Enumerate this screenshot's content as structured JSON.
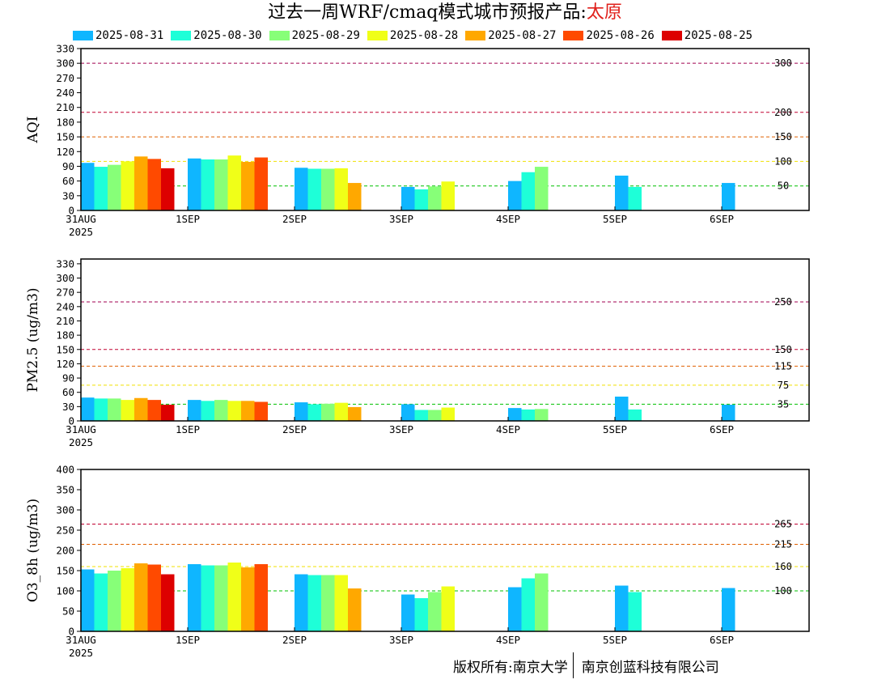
{
  "header": {
    "title_prefix": "过去一周WRF/cmaq模式城市预报产品:",
    "city": "太原"
  },
  "colors": {
    "series": [
      "#0fb6ff",
      "#1effd8",
      "#87ff78",
      "#f0ff18",
      "#ffa800",
      "#ff4a00",
      "#dd0000"
    ],
    "thresholds": {
      "300": "#a00050",
      "200": "#c00030",
      "150": "#e06000",
      "100": "#f0e000",
      "50": "#00c000"
    }
  },
  "legend": [
    "2025-08-31",
    "2025-08-30",
    "2025-08-29",
    "2025-08-28",
    "2025-08-27",
    "2025-08-26",
    "2025-08-25"
  ],
  "footer": {
    "copyright_left": "版权所有:南京大学",
    "copyright_right": "南京创蓝科技有限公司"
  },
  "chart_data": [
    {
      "type": "bar",
      "ylabel": "AQI",
      "ylim": [
        0,
        330
      ],
      "yticks": [
        0,
        30,
        60,
        90,
        120,
        150,
        180,
        210,
        240,
        270,
        300,
        330
      ],
      "xticks": [
        "31AUG",
        "1SEP",
        "2SEP",
        "3SEP",
        "4SEP",
        "5SEP",
        "6SEP"
      ],
      "xticks_sub": [
        "2025",
        "",
        "",
        "",
        "",
        "",
        ""
      ],
      "thresholds": [
        {
          "value": 300,
          "label": "300",
          "color": "#a00050"
        },
        {
          "value": 200,
          "label": "200",
          "color": "#c00030"
        },
        {
          "value": 150,
          "label": "150",
          "color": "#e06000"
        },
        {
          "value": 100,
          "label": "100",
          "color": "#f0e000"
        },
        {
          "value": 50,
          "label": "50",
          "color": "#00c000"
        }
      ],
      "series": [
        {
          "name": "2025-08-31",
          "values": [
            97,
            106,
            87,
            48,
            60,
            71,
            56
          ]
        },
        {
          "name": "2025-08-30",
          "values": [
            89,
            104,
            85,
            43,
            78,
            48,
            null
          ]
        },
        {
          "name": "2025-08-29",
          "values": [
            93,
            104,
            85,
            49,
            89,
            null,
            null
          ]
        },
        {
          "name": "2025-08-28",
          "values": [
            100,
            112,
            86,
            59,
            null,
            null,
            null
          ]
        },
        {
          "name": "2025-08-27",
          "values": [
            110,
            99,
            56,
            null,
            null,
            null,
            null
          ]
        },
        {
          "name": "2025-08-26",
          "values": [
            105,
            108,
            null,
            null,
            null,
            null,
            null
          ]
        },
        {
          "name": "2025-08-25",
          "values": [
            86,
            null,
            null,
            null,
            null,
            null,
            null
          ]
        }
      ]
    },
    {
      "type": "bar",
      "ylabel": "PM2.5 (ug/m3)",
      "ylim": [
        0,
        340
      ],
      "yticks": [
        0,
        30,
        60,
        90,
        120,
        150,
        180,
        210,
        240,
        270,
        300,
        330
      ],
      "xticks": [
        "31AUG",
        "1SEP",
        "2SEP",
        "3SEP",
        "4SEP",
        "5SEP",
        "6SEP"
      ],
      "xticks_sub": [
        "2025",
        "",
        "",
        "",
        "",
        "",
        ""
      ],
      "thresholds": [
        {
          "value": 250,
          "label": "250",
          "color": "#a00050"
        },
        {
          "value": 150,
          "label": "150",
          "color": "#c00030"
        },
        {
          "value": 115,
          "label": "115",
          "color": "#e06000"
        },
        {
          "value": 75,
          "label": "75",
          "color": "#f0e000"
        },
        {
          "value": 35,
          "label": "35",
          "color": "#00c000"
        }
      ],
      "series": [
        {
          "name": "2025-08-31",
          "values": [
            49,
            44,
            39,
            35,
            27,
            51,
            34
          ]
        },
        {
          "name": "2025-08-30",
          "values": [
            47,
            42,
            35,
            23,
            24,
            24,
            null
          ]
        },
        {
          "name": "2025-08-29",
          "values": [
            47,
            44,
            36,
            23,
            25,
            null,
            null
          ]
        },
        {
          "name": "2025-08-28",
          "values": [
            44,
            42,
            38,
            28,
            null,
            null,
            null
          ]
        },
        {
          "name": "2025-08-27",
          "values": [
            48,
            42,
            29,
            null,
            null,
            null,
            null
          ]
        },
        {
          "name": "2025-08-26",
          "values": [
            44,
            40,
            null,
            null,
            null,
            null,
            null
          ]
        },
        {
          "name": "2025-08-25",
          "values": [
            34,
            null,
            null,
            null,
            null,
            null,
            null
          ]
        }
      ]
    },
    {
      "type": "bar",
      "ylabel": "O3_8h (ug/m3)",
      "ylim": [
        0,
        400
      ],
      "yticks": [
        0,
        50,
        100,
        150,
        200,
        250,
        300,
        350,
        400
      ],
      "xticks": [
        "31AUG",
        "1SEP",
        "2SEP",
        "3SEP",
        "4SEP",
        "5SEP",
        "6SEP"
      ],
      "xticks_sub": [
        "2025",
        "",
        "",
        "",
        "",
        "",
        ""
      ],
      "thresholds": [
        {
          "value": 265,
          "label": "265",
          "color": "#c00030"
        },
        {
          "value": 215,
          "label": "215",
          "color": "#e06000"
        },
        {
          "value": 160,
          "label": "160",
          "color": "#f0e000"
        },
        {
          "value": 100,
          "label": "100",
          "color": "#00c000"
        }
      ],
      "series": [
        {
          "name": "2025-08-31",
          "values": [
            153,
            166,
            141,
            91,
            109,
            113,
            107
          ]
        },
        {
          "name": "2025-08-30",
          "values": [
            143,
            163,
            139,
            82,
            131,
            97,
            null
          ]
        },
        {
          "name": "2025-08-29",
          "values": [
            150,
            163,
            139,
            97,
            143,
            null,
            null
          ]
        },
        {
          "name": "2025-08-28",
          "values": [
            156,
            170,
            139,
            111,
            null,
            null,
            null
          ]
        },
        {
          "name": "2025-08-27",
          "values": [
            168,
            158,
            106,
            null,
            null,
            null,
            null
          ]
        },
        {
          "name": "2025-08-26",
          "values": [
            165,
            166,
            null,
            null,
            null,
            null,
            null
          ]
        },
        {
          "name": "2025-08-25",
          "values": [
            141,
            null,
            null,
            null,
            null,
            null,
            null
          ]
        }
      ]
    }
  ]
}
